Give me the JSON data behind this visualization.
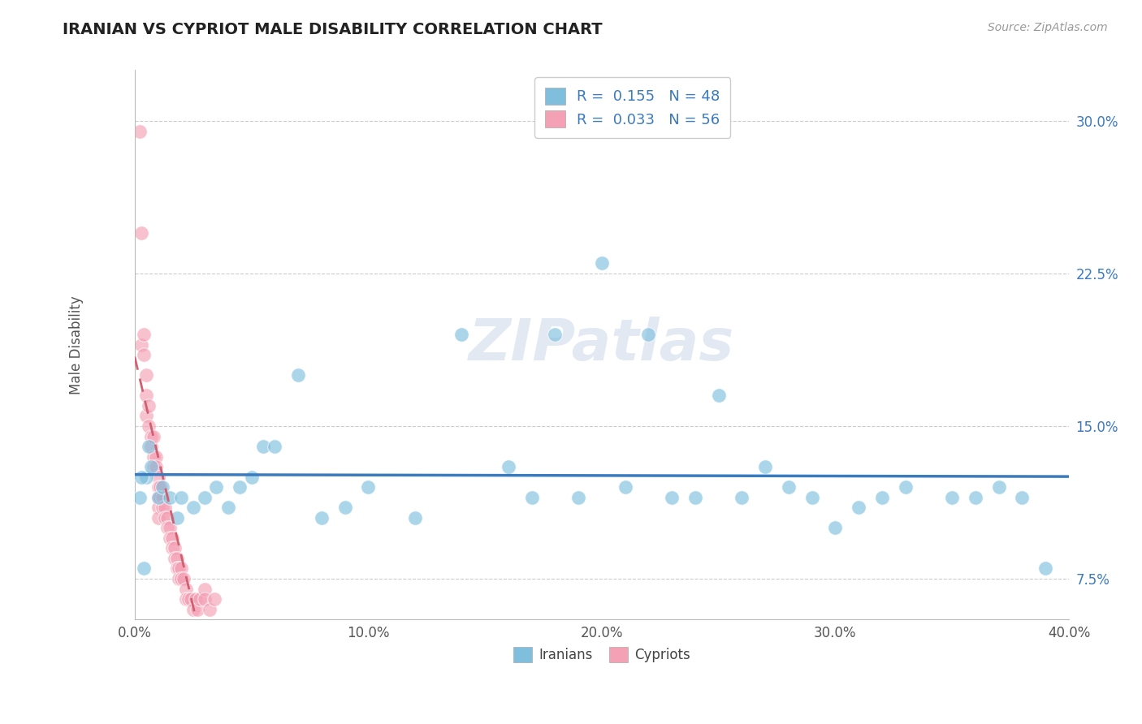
{
  "title": "IRANIAN VS CYPRIOT MALE DISABILITY CORRELATION CHART",
  "source_text": "Source: ZipAtlas.com",
  "ylabel": "Male Disability",
  "xlim": [
    0.0,
    0.4
  ],
  "ylim": [
    0.055,
    0.325
  ],
  "x_ticks": [
    0.0,
    0.1,
    0.2,
    0.3,
    0.4
  ],
  "x_tick_labels": [
    "0.0%",
    "10.0%",
    "20.0%",
    "30.0%",
    "40.0%"
  ],
  "y_ticks": [
    0.075,
    0.15,
    0.225,
    0.3
  ],
  "y_tick_labels": [
    "7.5%",
    "15.0%",
    "22.5%",
    "30.0%"
  ],
  "iranians_R": 0.155,
  "iranians_N": 48,
  "cypriots_R": 0.033,
  "cypriots_N": 56,
  "blue_scatter_color": "#7fbfdd",
  "pink_scatter_color": "#f4a0b5",
  "blue_line_color": "#3a7abf",
  "pink_line_color": "#d06070",
  "legend_label_iranians": "Iranians",
  "legend_label_cypriots": "Cypriots",
  "iranians_x": [
    0.005,
    0.007,
    0.01,
    0.012,
    0.015,
    0.018,
    0.02,
    0.025,
    0.03,
    0.035,
    0.04,
    0.045,
    0.05,
    0.055,
    0.06,
    0.07,
    0.08,
    0.09,
    0.1,
    0.12,
    0.14,
    0.16,
    0.17,
    0.18,
    0.19,
    0.2,
    0.21,
    0.22,
    0.23,
    0.24,
    0.25,
    0.26,
    0.27,
    0.28,
    0.29,
    0.3,
    0.31,
    0.32,
    0.33,
    0.35,
    0.36,
    0.37,
    0.38,
    0.39,
    0.002,
    0.003,
    0.004,
    0.006
  ],
  "iranians_y": [
    0.125,
    0.13,
    0.115,
    0.12,
    0.115,
    0.105,
    0.115,
    0.11,
    0.115,
    0.12,
    0.11,
    0.12,
    0.125,
    0.14,
    0.14,
    0.175,
    0.105,
    0.11,
    0.12,
    0.105,
    0.195,
    0.13,
    0.115,
    0.195,
    0.115,
    0.23,
    0.12,
    0.195,
    0.115,
    0.115,
    0.165,
    0.115,
    0.13,
    0.12,
    0.115,
    0.1,
    0.11,
    0.115,
    0.12,
    0.115,
    0.115,
    0.12,
    0.115,
    0.08,
    0.115,
    0.125,
    0.08,
    0.14
  ],
  "cypriots_x": [
    0.002,
    0.003,
    0.003,
    0.004,
    0.004,
    0.005,
    0.005,
    0.005,
    0.006,
    0.006,
    0.007,
    0.007,
    0.008,
    0.008,
    0.008,
    0.009,
    0.009,
    0.01,
    0.01,
    0.01,
    0.01,
    0.01,
    0.01,
    0.011,
    0.011,
    0.012,
    0.012,
    0.013,
    0.013,
    0.014,
    0.014,
    0.015,
    0.015,
    0.016,
    0.016,
    0.017,
    0.017,
    0.018,
    0.018,
    0.019,
    0.019,
    0.02,
    0.02,
    0.021,
    0.022,
    0.022,
    0.023,
    0.024,
    0.025,
    0.026,
    0.027,
    0.028,
    0.03,
    0.03,
    0.032,
    0.034
  ],
  "cypriots_y": [
    0.295,
    0.245,
    0.19,
    0.195,
    0.185,
    0.175,
    0.165,
    0.155,
    0.16,
    0.15,
    0.145,
    0.14,
    0.145,
    0.135,
    0.13,
    0.135,
    0.13,
    0.125,
    0.12,
    0.115,
    0.115,
    0.11,
    0.105,
    0.12,
    0.115,
    0.115,
    0.11,
    0.11,
    0.105,
    0.105,
    0.1,
    0.1,
    0.095,
    0.095,
    0.09,
    0.09,
    0.085,
    0.085,
    0.08,
    0.08,
    0.075,
    0.08,
    0.075,
    0.075,
    0.07,
    0.065,
    0.065,
    0.065,
    0.06,
    0.065,
    0.06,
    0.065,
    0.07,
    0.065,
    0.06,
    0.065
  ],
  "watermark": "ZIPatlas",
  "background_color": "#ffffff",
  "grid_color": "#cccccc"
}
